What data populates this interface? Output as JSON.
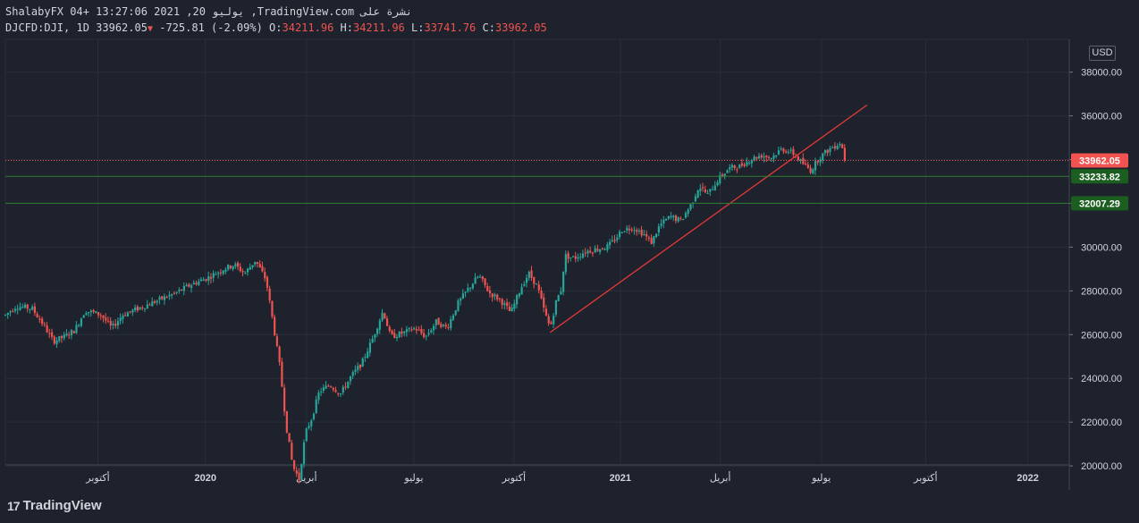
{
  "header": {
    "line1": "ShalabyFX 04+ 13:27:06 2021 ,20 يوليو ,TradingView.com نشرة على",
    "symbol": "DJCFD:DJI, 1D 33962.05",
    "change": "-725.81 (-2.09%)",
    "o_label": "O:",
    "o_value": "34211.96",
    "h_label": "H:",
    "h_value": "34211.96",
    "l_label": "L:",
    "l_value": "33741.76",
    "c_label": "C:",
    "c_value": "33962.05"
  },
  "currency": "USD",
  "footer": {
    "brand": "TradingView",
    "logo_mark": "17"
  },
  "colors": {
    "up": "#26a69a",
    "down": "#ef5350",
    "support": "#2e7d32",
    "trend": "#e53935",
    "grid": "#2a2e39"
  },
  "chart_data": {
    "type": "candlestick",
    "symbol": "DJCFD:DJI",
    "interval": "1D",
    "currency": "USD",
    "ylim": [
      18900,
      39500
    ],
    "y_ticks": [
      20000,
      22000,
      24000,
      26000,
      28000,
      30000,
      32000,
      34000,
      36000,
      38000
    ],
    "x_tick_labels": [
      {
        "label": "أكتوبر",
        "t": 0.087,
        "bold": false
      },
      {
        "label": "2020",
        "t": 0.188,
        "bold": true
      },
      {
        "label": "أبريل",
        "t": 0.283,
        "bold": false
      },
      {
        "label": "يوليو",
        "t": 0.384,
        "bold": false
      },
      {
        "label": "أكتوبر",
        "t": 0.478,
        "bold": false
      },
      {
        "label": "2021",
        "t": 0.578,
        "bold": true
      },
      {
        "label": "أبريل",
        "t": 0.672,
        "bold": false
      },
      {
        "label": "يوليو",
        "t": 0.767,
        "bold": false
      },
      {
        "label": "أكتوبر",
        "t": 0.865,
        "bold": false
      },
      {
        "label": "2022",
        "t": 0.961,
        "bold": true
      }
    ],
    "price_path": [
      [
        0.0,
        26900
      ],
      [
        0.01,
        27300
      ],
      [
        0.025,
        27200
      ],
      [
        0.035,
        26500
      ],
      [
        0.045,
        25700
      ],
      [
        0.055,
        25900
      ],
      [
        0.065,
        26200
      ],
      [
        0.075,
        27100
      ],
      [
        0.09,
        26900
      ],
      [
        0.1,
        26300
      ],
      [
        0.11,
        26900
      ],
      [
        0.125,
        27200
      ],
      [
        0.14,
        27500
      ],
      [
        0.16,
        27900
      ],
      [
        0.175,
        28300
      ],
      [
        0.19,
        28600
      ],
      [
        0.205,
        29000
      ],
      [
        0.215,
        29200
      ],
      [
        0.225,
        28800
      ],
      [
        0.235,
        29400
      ],
      [
        0.245,
        28500
      ],
      [
        0.252,
        26400
      ],
      [
        0.258,
        24500
      ],
      [
        0.264,
        21800
      ],
      [
        0.27,
        20000
      ],
      [
        0.276,
        19400
      ],
      [
        0.282,
        21500
      ],
      [
        0.288,
        22200
      ],
      [
        0.295,
        23400
      ],
      [
        0.305,
        23700
      ],
      [
        0.315,
        23300
      ],
      [
        0.325,
        24100
      ],
      [
        0.335,
        24700
      ],
      [
        0.345,
        25800
      ],
      [
        0.355,
        27100
      ],
      [
        0.362,
        25900
      ],
      [
        0.375,
        26100
      ],
      [
        0.385,
        26300
      ],
      [
        0.395,
        25900
      ],
      [
        0.405,
        26600
      ],
      [
        0.415,
        26300
      ],
      [
        0.425,
        27400
      ],
      [
        0.435,
        28100
      ],
      [
        0.445,
        28700
      ],
      [
        0.455,
        27900
      ],
      [
        0.465,
        27600
      ],
      [
        0.475,
        27000
      ],
      [
        0.485,
        28200
      ],
      [
        0.492,
        28800
      ],
      [
        0.5,
        28200
      ],
      [
        0.507,
        27000
      ],
      [
        0.512,
        26300
      ],
      [
        0.518,
        27600
      ],
      [
        0.522,
        28000
      ],
      [
        0.526,
        29600
      ],
      [
        0.535,
        29500
      ],
      [
        0.545,
        29800
      ],
      [
        0.555,
        29900
      ],
      [
        0.565,
        30000
      ],
      [
        0.572,
        30300
      ],
      [
        0.58,
        30800
      ],
      [
        0.59,
        30900
      ],
      [
        0.6,
        30600
      ],
      [
        0.607,
        30200
      ],
      [
        0.615,
        31000
      ],
      [
        0.625,
        31400
      ],
      [
        0.635,
        31200
      ],
      [
        0.645,
        32000
      ],
      [
        0.652,
        32800
      ],
      [
        0.66,
        32400
      ],
      [
        0.67,
        33100
      ],
      [
        0.68,
        33600
      ],
      [
        0.69,
        33700
      ],
      [
        0.7,
        34000
      ],
      [
        0.71,
        34200
      ],
      [
        0.72,
        34100
      ],
      [
        0.73,
        34500
      ],
      [
        0.74,
        34300
      ],
      [
        0.75,
        33800
      ],
      [
        0.757,
        33500
      ],
      [
        0.765,
        34100
      ],
      [
        0.775,
        34500
      ],
      [
        0.785,
        34800
      ],
      [
        0.79,
        33962
      ]
    ],
    "horizontal_lines": [
      {
        "name": "last-price",
        "value": 33962.05,
        "label": "33962.05",
        "style": "dotted",
        "color": "#ef5350"
      },
      {
        "name": "support-1",
        "value": 33233.82,
        "label": "33233.82",
        "style": "solid",
        "color": "#2e7d32"
      },
      {
        "name": "support-2",
        "value": 32007.29,
        "label": "32007.29",
        "style": "solid",
        "color": "#2e7d32"
      }
    ],
    "trend_line": {
      "t_start": 0.512,
      "price_start": 26100,
      "t_end": 0.81,
      "price_end": 36500,
      "color": "#e53935"
    }
  }
}
